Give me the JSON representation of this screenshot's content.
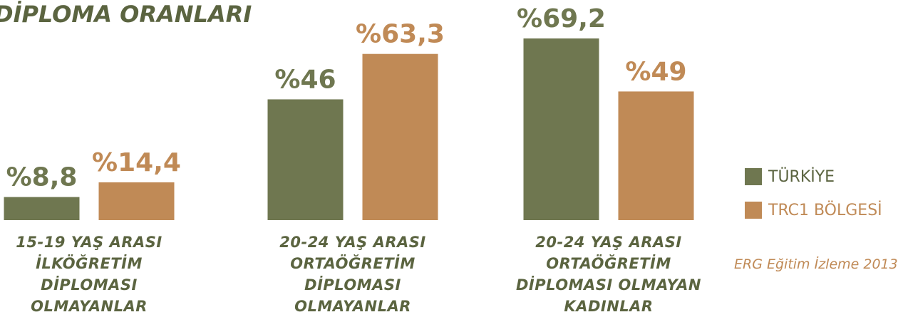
{
  "chart_data": {
    "type": "bar",
    "title": "DİPLOMA ORANLARI",
    "categories": [
      "15-19 YAŞ ARASI İLKÖĞRETİM DİPLOMASI OLMAYANLAR",
      "20-24 YAŞ ARASI ORTAÖĞRETİM DİPLOMASI OLMAYANLAR",
      "20-24 YAŞ ARASI ORTAÖĞRETİM DİPLOMASI OLMAYAN KADINLAR"
    ],
    "series": [
      {
        "name": "TÜRKİYE",
        "color": "#6f7750",
        "values": [
          8.8,
          46,
          69.2
        ],
        "value_labels": [
          "%8,8",
          "%46",
          "%69,2"
        ]
      },
      {
        "name": "TRC1 BÖLGESİ",
        "color": "#c08a56",
        "values": [
          14.4,
          63.3,
          49
        ],
        "value_labels": [
          "%14,4",
          "%63,3",
          "%49"
        ]
      }
    ],
    "ylim": [
      0,
      70
    ],
    "source": "ERG Eğitim İzleme 2013"
  }
}
